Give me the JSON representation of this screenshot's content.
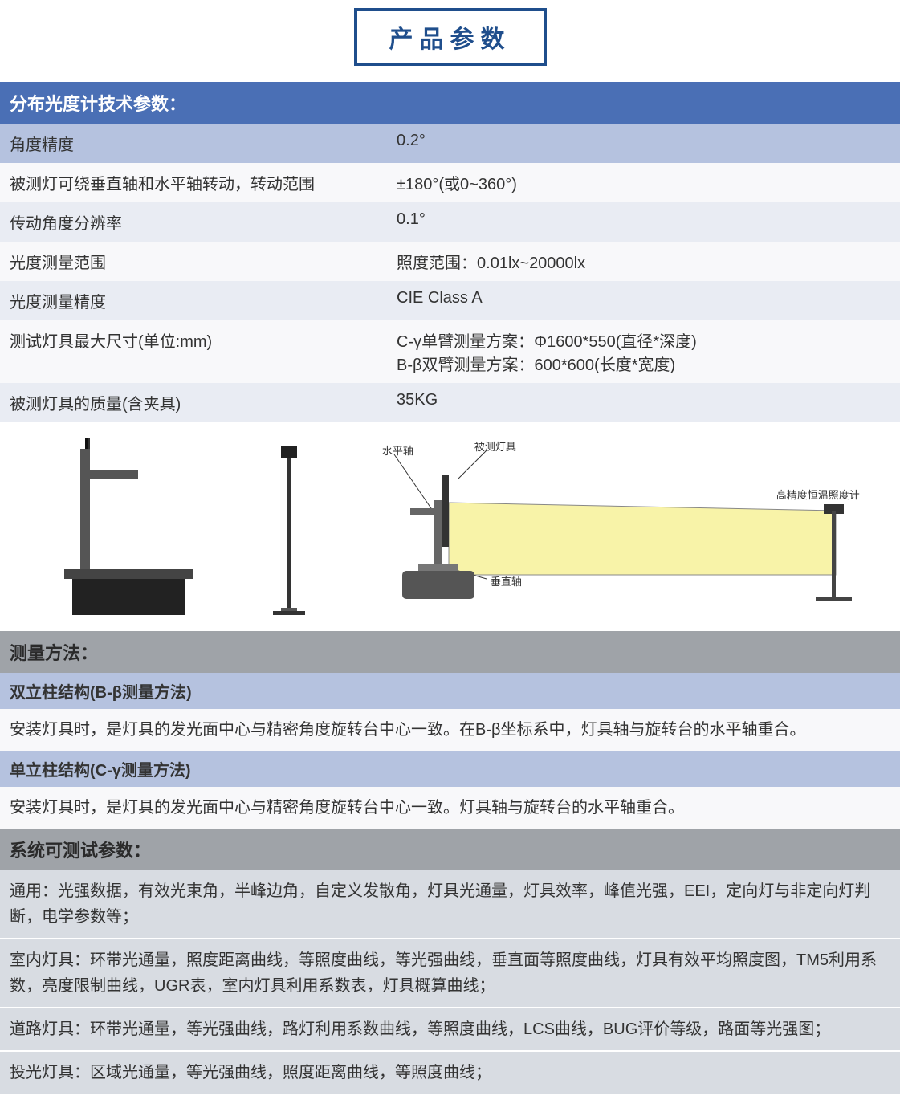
{
  "colors": {
    "title_border": "#1f4e8c",
    "title_text": "#1f4e8c",
    "section_bg": "#4a6fb5",
    "subheader_bg": "#b5c2df",
    "row_even_bg": "#e9ecf3",
    "row_odd_bg": "#f8f8fa",
    "gray_header_bg": "#9fa3a8",
    "gray_row_bg": "#d8dce2",
    "text_dark": "#2a2a2a",
    "beam_fill": "#f8f3a8"
  },
  "page_title": "产品参数",
  "specs_header": "分布光度计技术参数：",
  "specs_rows": [
    {
      "label": "角度精度",
      "value": "0.2°"
    },
    {
      "label": "被测灯可绕垂直轴和水平轴转动，转动范围",
      "value": "±180°(或0~360°)"
    },
    {
      "label": "传动角度分辨率",
      "value": "0.1°"
    },
    {
      "label": "光度测量范围",
      "value": "照度范围：0.01lx~20000lx"
    },
    {
      "label": "光度测量精度",
      "value": "CIE Class A"
    },
    {
      "label": "测试灯具最大尺寸(单位:mm)",
      "value": "C-γ单臂测量方案：Φ1600*550(直径*深度)\nB-β双臂测量方案：600*600(长度*宽度)"
    },
    {
      "label": "被测灯具的质量(含夹具)",
      "value": "35KG"
    }
  ],
  "diagram_labels": {
    "horizontal_axis": "水平轴",
    "tested_lamp": "被测灯具",
    "vertical_axis": "垂直轴",
    "detector": "高精度恒温照度计"
  },
  "method_header": "测量方法：",
  "method_bb_title": "双立柱结构(B-β测量方法)",
  "method_bb_text": "安装灯具时，是灯具的发光面中心与精密角度旋转台中心一致。在B-β坐标系中，灯具轴与旋转台的水平轴重合。",
  "method_cy_title": "单立柱结构(C-γ测量方法)",
  "method_cy_text": "安装灯具时，是灯具的发光面中心与精密角度旋转台中心一致。灯具轴与旋转台的水平轴重合。",
  "params_header": "系统可测试参数：",
  "params_blocks": [
    "通用：光强数据，有效光束角，半峰边角，自定义发散角，灯具光通量，灯具效率，峰值光强，EEI，定向灯与非定向灯判断，电学参数等；",
    "室内灯具：环带光通量，照度距离曲线，等照度曲线，等光强曲线，垂直面等照度曲线，灯具有效平均照度图，TM5利用系数，亮度限制曲线，UGR表，室内灯具利用系数表，灯具概算曲线；",
    "道路灯具：环带光通量，等光强曲线，路灯利用系数曲线，等照度曲线，LCS曲线，BUG评价等级，路面等光强图；",
    "投光灯具：区域光通量，等光强曲线，照度距离曲线，等照度曲线；"
  ]
}
